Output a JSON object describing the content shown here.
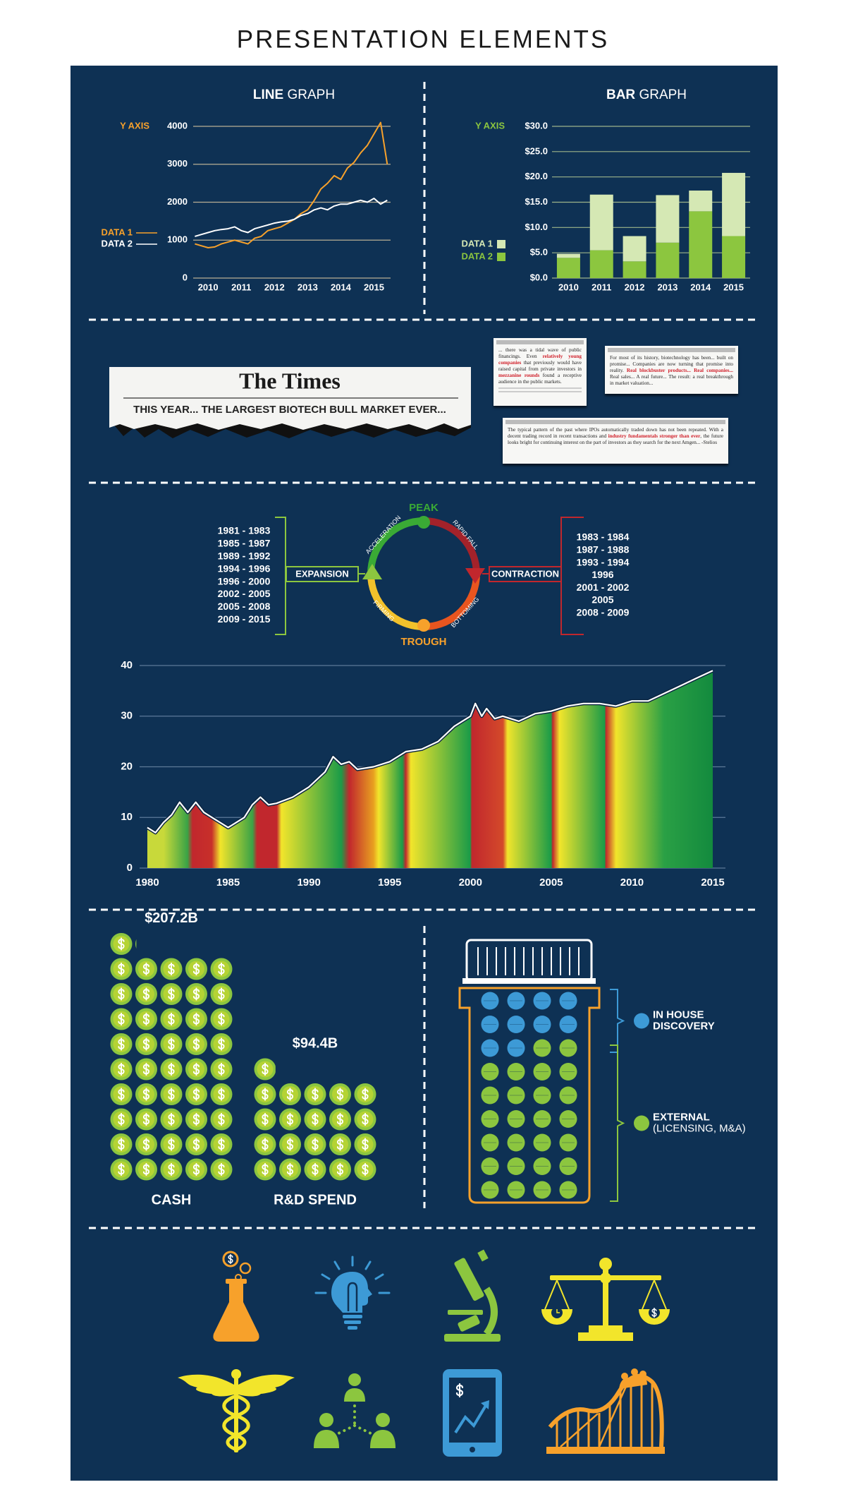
{
  "title": "PRESENTATION ELEMENTS",
  "chart_data": [
    {
      "type": "line",
      "title_bold": "LINE",
      "title": "GRAPH",
      "y_axis_label": "Y AXIS",
      "x": [
        2009.6,
        2009.8,
        2010,
        2010.2,
        2010.4,
        2010.6,
        2010.8,
        2011,
        2011.2,
        2011.4,
        2011.6,
        2011.8,
        2012,
        2012.2,
        2012.4,
        2012.6,
        2012.8,
        2013,
        2013.2,
        2013.4,
        2013.6,
        2013.8,
        2014,
        2014.2,
        2014.4,
        2014.6,
        2014.8,
        2015,
        2015.2,
        2015.4
      ],
      "series": [
        {
          "name": "DATA 1",
          "color": "#f7a12b",
          "values": [
            900,
            850,
            800,
            820,
            900,
            950,
            1000,
            950,
            900,
            1050,
            1100,
            1250,
            1300,
            1350,
            1450,
            1550,
            1700,
            1800,
            2050,
            2350,
            2500,
            2700,
            2600,
            2900,
            3050,
            3300,
            3500,
            3800,
            4100,
            3000
          ]
        },
        {
          "name": "DATA 2",
          "color": "#ffffff",
          "values": [
            1100,
            1150,
            1200,
            1250,
            1280,
            1300,
            1350,
            1250,
            1200,
            1300,
            1350,
            1400,
            1450,
            1480,
            1500,
            1550,
            1650,
            1700,
            1800,
            1850,
            1800,
            1900,
            1950,
            1950,
            2000,
            2050,
            2000,
            2100,
            1950,
            2050
          ]
        }
      ],
      "xlim": [
        2009.55,
        2015.5
      ],
      "xticks": [
        2010,
        2011,
        2012,
        2013,
        2014,
        2015
      ],
      "ylim": [
        0,
        4000
      ],
      "yticks": [
        0,
        1000,
        2000,
        3000,
        4000
      ],
      "grid": true,
      "grid_color": "#b8ae94"
    },
    {
      "type": "bar",
      "stacked": true,
      "title_bold": "BAR",
      "title": "GRAPH",
      "y_axis_label": "Y AXIS",
      "categories": [
        "2010",
        "2011",
        "2012",
        "2013",
        "2014",
        "2015"
      ],
      "series": [
        {
          "name": "DATA 1",
          "color": "#d5e8b4",
          "values": [
            0.8,
            11.0,
            5.0,
            9.4,
            4.1,
            12.5
          ]
        },
        {
          "name": "DATA 2",
          "color": "#8cc63f",
          "values": [
            4.0,
            5.5,
            3.3,
            7.0,
            13.2,
            8.3
          ]
        }
      ],
      "ylim": [
        0,
        30
      ],
      "yticks": [
        {
          "value": 0,
          "label": "$0.0"
        },
        {
          "value": 5,
          "label": "$5.0"
        },
        {
          "value": 10,
          "label": "$10.0"
        },
        {
          "value": 15,
          "label": "$15.0"
        },
        {
          "value": 20,
          "label": "$20.0"
        },
        {
          "value": 25,
          "label": "$25.0"
        },
        {
          "value": 30,
          "label": "$30.0"
        }
      ],
      "grid": true,
      "grid_color": "#9db48a"
    },
    {
      "type": "area",
      "x": [
        1980,
        1980.5,
        1981,
        1981.5,
        1982,
        1982.5,
        1983,
        1983.5,
        1984,
        1985,
        1986,
        1986.5,
        1987,
        1987.5,
        1988,
        1989,
        1990,
        1991,
        1991.5,
        1992,
        1992.5,
        1993,
        1994,
        1995,
        1996,
        1997,
        1998,
        1999,
        2000,
        2000.3,
        2000.7,
        2001,
        2001.5,
        2002,
        2003,
        2004,
        2005,
        2006,
        2007,
        2008,
        2009,
        2010,
        2011,
        2012,
        2013,
        2014,
        2015
      ],
      "values": [
        8,
        7,
        9,
        10.5,
        13,
        11,
        13,
        11,
        10,
        8,
        10,
        12.5,
        14,
        12.5,
        12.8,
        14,
        16,
        19,
        22,
        20.5,
        21,
        19.5,
        20,
        21,
        23,
        23.5,
        25,
        28,
        30,
        32.5,
        30,
        31.5,
        29.5,
        30,
        29,
        30.5,
        31,
        32,
        32.5,
        32.5,
        32,
        33,
        33,
        34.5,
        36,
        37.5,
        39
      ],
      "line_color": "#ffffff",
      "xlim": [
        1980,
        2015
      ],
      "xticks": [
        1980,
        1985,
        1990,
        1995,
        2000,
        2005,
        2010,
        2015
      ],
      "ylim": [
        0,
        40
      ],
      "yticks": [
        0,
        10,
        20,
        30,
        40
      ],
      "grid": true,
      "grid_color": "#5d7a98"
    },
    {
      "type": "pictograph",
      "categories": [
        "CASH",
        "R&D SPEND"
      ],
      "values": [
        207.2,
        94.4
      ],
      "value_labels": [
        "$207.2B",
        "$94.4B"
      ],
      "color": "#8cc63f"
    },
    {
      "type": "waffle",
      "categories": [
        [
          "IN HOUSE",
          "DISCOVERY"
        ],
        [
          "EXTERNAL",
          "(LICENSING, M&A)"
        ]
      ],
      "values": [
        10,
        26
      ],
      "colors": [
        "#3d9ad6",
        "#8cc63f"
      ]
    }
  ],
  "newspaper": {
    "masthead": "The Times",
    "headline": "THIS YEAR... THE LARGEST BIOTECH BULL MARKET EVER...",
    "clippings": [
      {
        "parts": [
          {
            "text": "... there was a tidal wave of public financings.  Even "
          },
          {
            "text": "relatively young companies",
            "red": true
          },
          {
            "text": " that previously would have raised capital from private investors in "
          },
          {
            "text": "mezzanine rounds",
            "red": true
          },
          {
            "text": " found a receptive audience in the public markets."
          }
        ]
      },
      {
        "parts": [
          {
            "text": "For most of its history, biotechnology has been... built on promise... Companies are now turning that promise into reality. "
          },
          {
            "text": "Real blockbuster products... Real companies...",
            "red": true
          },
          {
            "text": " Real sales... A real future... The result: a real breakthrough in market valuation..."
          }
        ]
      },
      {
        "parts": [
          {
            "text": "The typical pattern of the past where IPOs automatically traded down has not been repeated.  With a decent trading record in recent transactions and "
          },
          {
            "text": "industry fundamentals stronger than ever",
            "red": true
          },
          {
            "text": ", the future looks bright for continuing interest on the part of investors as they search for the next Amgen... -Stelios"
          }
        ]
      }
    ]
  },
  "cycle": {
    "peak": "PEAK",
    "trough": "TROUGH",
    "phases": [
      "ACCELERATION",
      "RAPID FALL",
      "BOTTOMING",
      "FIRMING"
    ],
    "expansion": {
      "label": "EXPANSION",
      "periods": [
        "1981 - 1983",
        "1985 - 1987",
        "1989 - 1992",
        "1994 - 1996",
        "1996 - 2000",
        "2002 - 2005",
        "2005 - 2008",
        "2009 - 2015"
      ]
    },
    "contraction": {
      "label": "CONTRACTION",
      "periods": [
        "1983 - 1984",
        "1987 - 1988",
        "1993 - 1994",
        "1996",
        "2001 - 2002",
        "2005",
        "2008 - 2009"
      ]
    }
  }
}
